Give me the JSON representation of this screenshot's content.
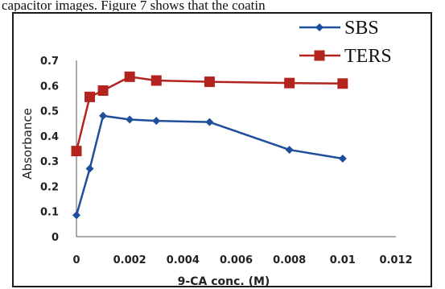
{
  "top_text": "capacitor images. Figure 7 shows that the coatin",
  "chart_data": {
    "type": "line",
    "title": "",
    "xlabel": "9-CA conc. (M)",
    "ylabel": "Absorbance",
    "xlim": [
      0,
      0.012
    ],
    "ylim": [
      0,
      0.7
    ],
    "x_ticks": [
      "0",
      "0.002",
      "0.004",
      "0.006",
      "0.008",
      "0.01",
      "0.012"
    ],
    "y_ticks": [
      "0",
      "0.1",
      "0.2",
      "0.3",
      "0.4",
      "0.5",
      "0.6",
      "0.7"
    ],
    "grid": false,
    "legend_position": "top-right",
    "series": [
      {
        "name": "SBS",
        "color": "#1f4e9c",
        "marker": "diamond",
        "x": [
          0,
          0.0005,
          0.001,
          0.002,
          0.003,
          0.005,
          0.008,
          0.01
        ],
        "y": [
          0.085,
          0.27,
          0.48,
          0.465,
          0.46,
          0.455,
          0.345,
          0.31
        ]
      },
      {
        "name": "TERS",
        "color": "#b3241e",
        "marker": "square",
        "x": [
          0,
          0.0005,
          0.001,
          0.002,
          0.003,
          0.005,
          0.008,
          0.01
        ],
        "y": [
          0.34,
          0.555,
          0.58,
          0.635,
          0.62,
          0.615,
          0.61,
          0.608
        ]
      }
    ]
  }
}
